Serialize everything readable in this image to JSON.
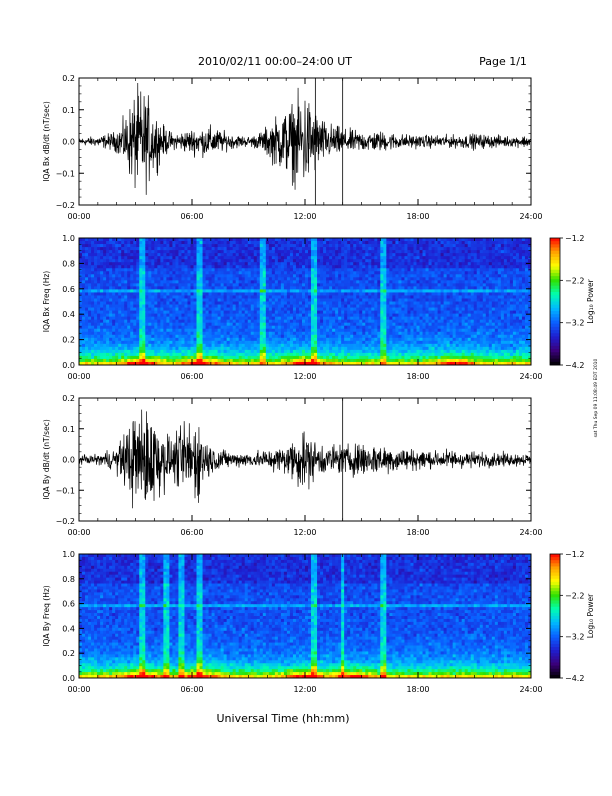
{
  "header": {
    "date_range": "2010/02/11  00:00–24:00 UT",
    "page_label": "Page 1/1"
  },
  "footer": {
    "xaxis_title": "Universal Time (hh:mm)",
    "side_note": "sat Thu Sep 09 11:08:49 EDT 2010"
  },
  "colors": {
    "trace": "#000000",
    "colormap": [
      "#000000",
      "#3a007a",
      "#1f1fd0",
      "#0a60ff",
      "#00b8ff",
      "#00ffb0",
      "#30e000",
      "#ffff00",
      "#ffa000",
      "#ff0000"
    ]
  },
  "chart_data": [
    {
      "type": "line",
      "name": "bx_waveform",
      "ylabel": "IQA Bx dB/dt (nT/sec)",
      "ylim": [
        -0.2,
        0.2
      ],
      "yticks": [
        "0.2",
        "0.1",
        "0.0",
        "−0.1",
        "−0.2"
      ],
      "xlim": [
        0,
        24
      ],
      "xticks": [
        "00:00",
        "06:00",
        "12:00",
        "18:00",
        "24:00"
      ],
      "x_hours": [
        0,
        1,
        2,
        2.5,
        3,
        3.3,
        3.6,
        4,
        4.5,
        5,
        6,
        7,
        8,
        9,
        9.5,
        10,
        10.5,
        11,
        11.5,
        12,
        12.5,
        13,
        14,
        15,
        16,
        17,
        18,
        19,
        20,
        21,
        22,
        23,
        24
      ],
      "y_amplitude": [
        0.015,
        0.02,
        0.04,
        0.1,
        0.2,
        0.2,
        0.18,
        0.12,
        0.06,
        0.03,
        0.05,
        0.06,
        0.03,
        0.02,
        0.03,
        0.06,
        0.1,
        0.13,
        0.16,
        0.2,
        0.13,
        0.08,
        0.05,
        0.04,
        0.04,
        0.03,
        0.025,
        0.025,
        0.025,
        0.03,
        0.025,
        0.02,
        0.025
      ],
      "spikes_hours": [
        12.55,
        14.0
      ]
    },
    {
      "type": "heatmap",
      "name": "bx_spectrogram",
      "ylabel": "IQA Bx Freq (Hz)",
      "ylim": [
        0.0,
        1.0
      ],
      "yticks": [
        "1.0",
        "0.8",
        "0.6",
        "0.4",
        "0.2",
        "0.0"
      ],
      "xlim": [
        0,
        24
      ],
      "xticks": [
        "00:00",
        "06:00",
        "12:00",
        "18:00",
        "24:00"
      ],
      "colorbar_label": "Log₁₀ Power",
      "colorbar_range": [
        -4.2,
        -1.2
      ],
      "colorbar_ticks": [
        "−1.2",
        "−2.2",
        "−3.2",
        "−4.2"
      ],
      "band_hz": 0.58,
      "vertical_streaks_hours": [
        3.3,
        6.4,
        9.7,
        12.5,
        16.1
      ],
      "bursts_hours": [
        3.3,
        6.5,
        12.0,
        20.0
      ]
    },
    {
      "type": "line",
      "name": "by_waveform",
      "ylabel": "IQA By dB/dt (nT/sec)",
      "ylim": [
        -0.2,
        0.2
      ],
      "yticks": [
        "0.2",
        "0.1",
        "0.0",
        "−0.1",
        "−0.2"
      ],
      "xlim": [
        0,
        24
      ],
      "xticks": [
        "00:00",
        "06:00",
        "12:00",
        "18:00",
        "24:00"
      ],
      "x_hours": [
        0,
        1,
        2,
        2.5,
        3,
        3.5,
        4,
        4.5,
        5,
        5.5,
        6,
        6.5,
        7,
        8,
        9,
        10,
        11,
        11.5,
        12,
        12.5,
        13,
        14,
        15,
        16,
        17,
        18,
        19,
        20,
        21,
        22,
        23,
        24
      ],
      "y_amplitude": [
        0.015,
        0.02,
        0.05,
        0.12,
        0.2,
        0.2,
        0.2,
        0.12,
        0.08,
        0.14,
        0.18,
        0.13,
        0.06,
        0.03,
        0.03,
        0.04,
        0.06,
        0.1,
        0.12,
        0.08,
        0.06,
        0.06,
        0.07,
        0.06,
        0.05,
        0.04,
        0.035,
        0.04,
        0.03,
        0.03,
        0.025,
        0.025
      ],
      "spikes_hours": [
        14.0
      ]
    },
    {
      "type": "heatmap",
      "name": "by_spectrogram",
      "ylabel": "IQA By Freq (Hz)",
      "ylim": [
        0.0,
        1.0
      ],
      "yticks": [
        "1.0",
        "0.8",
        "0.6",
        "0.4",
        "0.2",
        "0.0"
      ],
      "xlim": [
        0,
        24
      ],
      "xticks": [
        "00:00",
        "06:00",
        "12:00",
        "18:00",
        "24:00"
      ],
      "colorbar_label": "Log₁₀ Power",
      "colorbar_range": [
        -4.2,
        -1.2
      ],
      "colorbar_ticks": [
        "−1.2",
        "−2.2",
        "−3.2",
        "−4.2"
      ],
      "band_hz": 0.58,
      "vertical_streaks_hours": [
        3.3,
        4.6,
        5.4,
        6.4,
        12.5,
        14.0,
        16.1
      ],
      "bursts_hours": [
        3.3,
        6.5,
        12.0,
        14.5
      ]
    }
  ]
}
